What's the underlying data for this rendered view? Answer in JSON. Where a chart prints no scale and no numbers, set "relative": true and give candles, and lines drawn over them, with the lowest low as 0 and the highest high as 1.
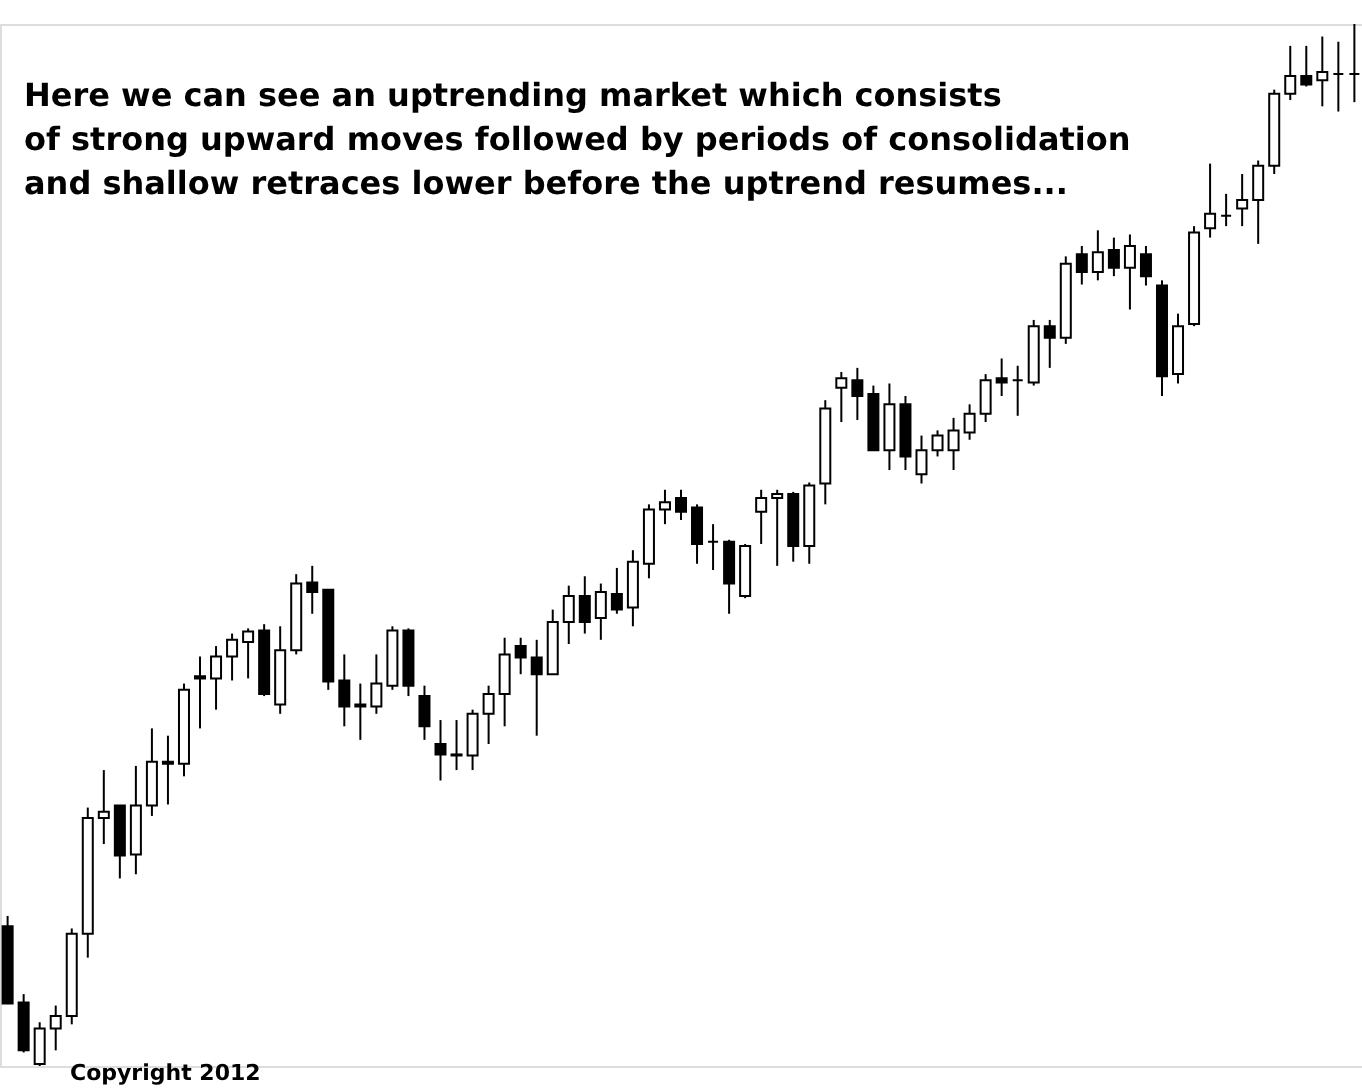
{
  "chart_data": {
    "type": "candlestick",
    "relative": true,
    "title": "Here we can see an uptrending market which consists\nof strong upward moves followed by periods of consolidation\nand shallow retraces lower before the uptrend resumes...",
    "annotations": [
      "Copyright 2012"
    ],
    "categories": [
      null,
      null,
      null,
      null,
      null,
      null,
      null,
      null,
      null,
      null,
      null,
      null,
      null,
      null,
      null,
      null,
      null,
      null,
      null,
      null,
      null,
      null,
      null,
      null,
      null,
      null,
      null,
      null,
      null,
      null,
      null,
      null,
      null,
      null,
      null,
      null,
      null,
      null,
      null,
      null,
      null,
      null,
      null,
      null,
      null,
      null,
      null,
      null,
      null,
      null,
      null,
      null,
      null,
      null,
      null,
      null,
      null,
      null,
      null,
      null,
      null,
      null,
      null,
      null,
      null,
      null,
      null,
      null,
      null,
      null,
      null,
      null,
      null,
      null,
      null,
      null,
      null,
      null,
      null,
      null,
      null,
      null,
      null,
      null,
      null
    ],
    "ohlc": [
      [
        0.134,
        0.144,
        0.06,
        0.06
      ],
      [
        0.061,
        0.069,
        0.013,
        0.015
      ],
      [
        0.002,
        0.042,
        0,
        0.036
      ],
      [
        0.036,
        0.058,
        0.015,
        0.048
      ],
      [
        0.048,
        0.132,
        0.04,
        0.127
      ],
      [
        0.127,
        0.248,
        0.104,
        0.238
      ],
      [
        0.238,
        0.284,
        0.213,
        0.244
      ],
      [
        0.25,
        0.25,
        0.18,
        0.202
      ],
      [
        0.203,
        0.288,
        0.184,
        0.25
      ],
      [
        0.25,
        0.324,
        0.24,
        0.292
      ],
      [
        0.29,
        0.317,
        0.251,
        0.292
      ],
      [
        0.29,
        0.367,
        0.278,
        0.361
      ],
      [
        0.374,
        0.393,
        0.324,
        0.372
      ],
      [
        0.372,
        0.403,
        0.342,
        0.393
      ],
      [
        0.393,
        0.415,
        0.37,
        0.409
      ],
      [
        0.407,
        0.42,
        0.372,
        0.417
      ],
      [
        0.418,
        0.424,
        0.355,
        0.357
      ],
      [
        0.347,
        0.422,
        0.338,
        0.399
      ],
      [
        0.399,
        0.472,
        0.395,
        0.463
      ],
      [
        0.464,
        0.48,
        0.434,
        0.455
      ],
      [
        0.457,
        0.457,
        0.361,
        0.369
      ],
      [
        0.37,
        0.395,
        0.326,
        0.345
      ],
      [
        0.347,
        0.367,
        0.313,
        0.345
      ],
      [
        0.345,
        0.395,
        0.338,
        0.367
      ],
      [
        0.365,
        0.422,
        0.361,
        0.418
      ],
      [
        0.418,
        0.42,
        0.355,
        0.365
      ],
      [
        0.355,
        0.365,
        0.313,
        0.326
      ],
      [
        0.309,
        0.332,
        0.274,
        0.299
      ],
      [
        0.299,
        0.332,
        0.284,
        0.298
      ],
      [
        0.298,
        0.342,
        0.284,
        0.338
      ],
      [
        0.338,
        0.365,
        0.309,
        0.357
      ],
      [
        0.357,
        0.411,
        0.326,
        0.395
      ],
      [
        0.403,
        0.411,
        0.376,
        0.392
      ],
      [
        0.392,
        0.409,
        0.317,
        0.376
      ],
      [
        0.376,
        0.438,
        0.376,
        0.426
      ],
      [
        0.426,
        0.461,
        0.405,
        0.451
      ],
      [
        0.451,
        0.47,
        0.415,
        0.426
      ],
      [
        0.43,
        0.463,
        0.409,
        0.455
      ],
      [
        0.453,
        0.478,
        0.434,
        0.438
      ],
      [
        0.44,
        0.495,
        0.422,
        0.484
      ],
      [
        0.482,
        0.539,
        0.468,
        0.534
      ],
      [
        0.534,
        0.553,
        0.52,
        0.541
      ],
      [
        0.545,
        0.553,
        0.524,
        0.532
      ],
      [
        0.536,
        0.539,
        0.482,
        0.501
      ],
      [
        0.503,
        0.52,
        0.476,
        0.503
      ],
      [
        0.503,
        0.505,
        0.434,
        0.463
      ],
      [
        0.451,
        0.501,
        0.449,
        0.499
      ],
      [
        0.532,
        0.553,
        0.501,
        0.545
      ],
      [
        0.545,
        0.553,
        0.48,
        0.549
      ],
      [
        0.549,
        0.551,
        0.484,
        0.499
      ],
      [
        0.499,
        0.56,
        0.482,
        0.557
      ],
      [
        0.559,
        0.639,
        0.539,
        0.631
      ],
      [
        0.651,
        0.666,
        0.618,
        0.66
      ],
      [
        0.658,
        0.67,
        0.62,
        0.643
      ],
      [
        0.645,
        0.653,
        0.591,
        0.591
      ],
      [
        0.591,
        0.655,
        0.572,
        0.635
      ],
      [
        0.635,
        0.643,
        0.572,
        0.585
      ],
      [
        0.568,
        0.605,
        0.559,
        0.591
      ],
      [
        0.591,
        0.61,
        0.585,
        0.605
      ],
      [
        0.591,
        0.622,
        0.572,
        0.61
      ],
      [
        0.608,
        0.635,
        0.601,
        0.626
      ],
      [
        0.626,
        0.664,
        0.618,
        0.658
      ],
      [
        0.66,
        0.679,
        0.643,
        0.656
      ],
      [
        0.658,
        0.672,
        0.624,
        0.658
      ],
      [
        0.656,
        0.716,
        0.653,
        0.71
      ],
      [
        0.71,
        0.716,
        0.67,
        0.699
      ],
      [
        0.699,
        0.777,
        0.693,
        0.77
      ],
      [
        0.779,
        0.787,
        0.75,
        0.762
      ],
      [
        0.762,
        0.802,
        0.754,
        0.781
      ],
      [
        0.783,
        0.795,
        0.758,
        0.766
      ],
      [
        0.766,
        0.798,
        0.726,
        0.787
      ],
      [
        0.779,
        0.787,
        0.749,
        0.758
      ],
      [
        0.749,
        0.754,
        0.643,
        0.662
      ],
      [
        0.664,
        0.722,
        0.655,
        0.71
      ],
      [
        0.712,
        0.806,
        0.71,
        0.8
      ],
      [
        0.804,
        0.866,
        0.795,
        0.818
      ],
      [
        0.816,
        0.837,
        0.806,
        0.816
      ],
      [
        0.823,
        0.856,
        0.806,
        0.831
      ],
      [
        0.831,
        0.869,
        0.789,
        0.864
      ],
      [
        0.864,
        0.937,
        0.856,
        0.933
      ],
      [
        0.933,
        0.979,
        0.927,
        0.95
      ],
      [
        0.95,
        0.979,
        0.94,
        0.942
      ],
      [
        0.946,
        0.988,
        0.921,
        0.954
      ],
      [
        0.952,
        0.983,
        0.916,
        0.952
      ],
      [
        0.952,
        1,
        0.925,
        0.952
      ]
    ]
  }
}
